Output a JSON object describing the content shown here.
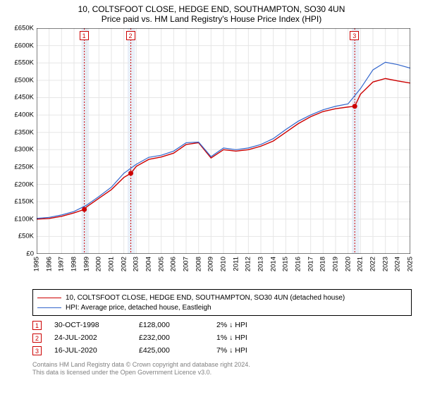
{
  "title": {
    "line1": "10, COLTSFOOT CLOSE, HEDGE END, SOUTHAMPTON, SO30 4UN",
    "line2": "Price paid vs. HM Land Registry's House Price Index (HPI)",
    "fontsize": 12
  },
  "chart": {
    "type": "line",
    "background_color": "#ffffff",
    "grid_color": "#e6e6e6",
    "axis_color": "#000000",
    "band_color": "#e9eff8",
    "event_line_color": "#cc0000",
    "x": {
      "min": 1995,
      "max": 2025,
      "ticks": [
        1995,
        1996,
        1997,
        1998,
        1999,
        2000,
        2001,
        2002,
        2003,
        2004,
        2005,
        2006,
        2007,
        2008,
        2009,
        2010,
        2011,
        2012,
        2013,
        2014,
        2015,
        2016,
        2017,
        2018,
        2019,
        2020,
        2021,
        2022,
        2023,
        2024,
        2025
      ],
      "label_fontsize": 9.5
    },
    "y": {
      "min": 0,
      "max": 650000,
      "ticks": [
        0,
        50000,
        100000,
        150000,
        200000,
        250000,
        300000,
        350000,
        400000,
        450000,
        500000,
        550000,
        600000,
        650000
      ],
      "tick_labels": [
        "£0",
        "£50K",
        "£100K",
        "£150K",
        "£200K",
        "£250K",
        "£300K",
        "£350K",
        "£400K",
        "£450K",
        "£500K",
        "£550K",
        "£600K",
        "£650K"
      ],
      "label_fontsize": 9.5
    },
    "bands": [
      {
        "from": 1998.6,
        "to": 1999.2
      },
      {
        "from": 2002.3,
        "to": 2002.9
      },
      {
        "from": 2020.3,
        "to": 2020.9
      }
    ],
    "series": [
      {
        "name": "subject",
        "label": "10, COLTSFOOT CLOSE, HEDGE END, SOUTHAMPTON, SO30 4UN (detached house)",
        "color": "#cc0000",
        "line_width": 1.4,
        "x": [
          1995,
          1996,
          1997,
          1998,
          1998.83,
          1999,
          2000,
          2001,
          2002,
          2002.56,
          2003,
          2004,
          2005,
          2006,
          2007,
          2008,
          2009,
          2010,
          2011,
          2012,
          2013,
          2014,
          2015,
          2016,
          2017,
          2018,
          2019,
          2020,
          2020.54,
          2021,
          2022,
          2023,
          2024,
          2025
        ],
        "y": [
          100000,
          102000,
          108000,
          118000,
          128000,
          135000,
          160000,
          185000,
          220000,
          232000,
          252000,
          272000,
          279000,
          290000,
          315000,
          320000,
          276000,
          300000,
          296000,
          300000,
          310000,
          325000,
          350000,
          375000,
          395000,
          410000,
          418000,
          423000,
          425000,
          460000,
          495000,
          505000,
          498000,
          492000
        ]
      },
      {
        "name": "hpi",
        "label": "HPI: Average price, detached house, Eastleigh",
        "color": "#3366cc",
        "line_width": 1.2,
        "x": [
          1995,
          1996,
          1997,
          1998,
          1999,
          2000,
          2001,
          2002,
          2003,
          2004,
          2005,
          2006,
          2007,
          2008,
          2009,
          2010,
          2011,
          2012,
          2013,
          2014,
          2015,
          2016,
          2017,
          2018,
          2019,
          2020,
          2021,
          2022,
          2023,
          2024,
          2025
        ],
        "y": [
          102000,
          105000,
          112000,
          122000,
          140000,
          165000,
          192000,
          232000,
          258000,
          278000,
          284000,
          296000,
          320000,
          322000,
          280000,
          305000,
          300000,
          305000,
          315000,
          332000,
          358000,
          382000,
          400000,
          415000,
          425000,
          432000,
          476000,
          530000,
          552000,
          545000,
          535000
        ]
      }
    ],
    "event_markers": [
      {
        "id": "1",
        "x": 1998.83,
        "y": 128000
      },
      {
        "id": "2",
        "x": 2002.56,
        "y": 232000
      },
      {
        "id": "3",
        "x": 2020.54,
        "y": 425000
      }
    ],
    "event_flags": [
      {
        "id": "1",
        "x": 1998.83
      },
      {
        "id": "2",
        "x": 2002.56
      },
      {
        "id": "3",
        "x": 2020.54
      }
    ]
  },
  "legend": {
    "items": [
      {
        "color": "#cc0000",
        "label": "10, COLTSFOOT CLOSE, HEDGE END, SOUTHAMPTON, SO30 4UN (detached house)"
      },
      {
        "color": "#3366cc",
        "label": "HPI: Average price, detached house, Eastleigh"
      }
    ]
  },
  "events_table": {
    "rows": [
      {
        "id": "1",
        "date": "30-OCT-1998",
        "price": "£128,000",
        "delta": "2% ↓ HPI"
      },
      {
        "id": "2",
        "date": "24-JUL-2002",
        "price": "£232,000",
        "delta": "1% ↓ HPI"
      },
      {
        "id": "3",
        "date": "16-JUL-2020",
        "price": "£425,000",
        "delta": "7% ↓ HPI"
      }
    ]
  },
  "footer": {
    "line1": "Contains HM Land Registry data © Crown copyright and database right 2024.",
    "line2": "This data is licensed under the Open Government Licence v3.0.",
    "color": "#808080",
    "fontsize": 9
  }
}
